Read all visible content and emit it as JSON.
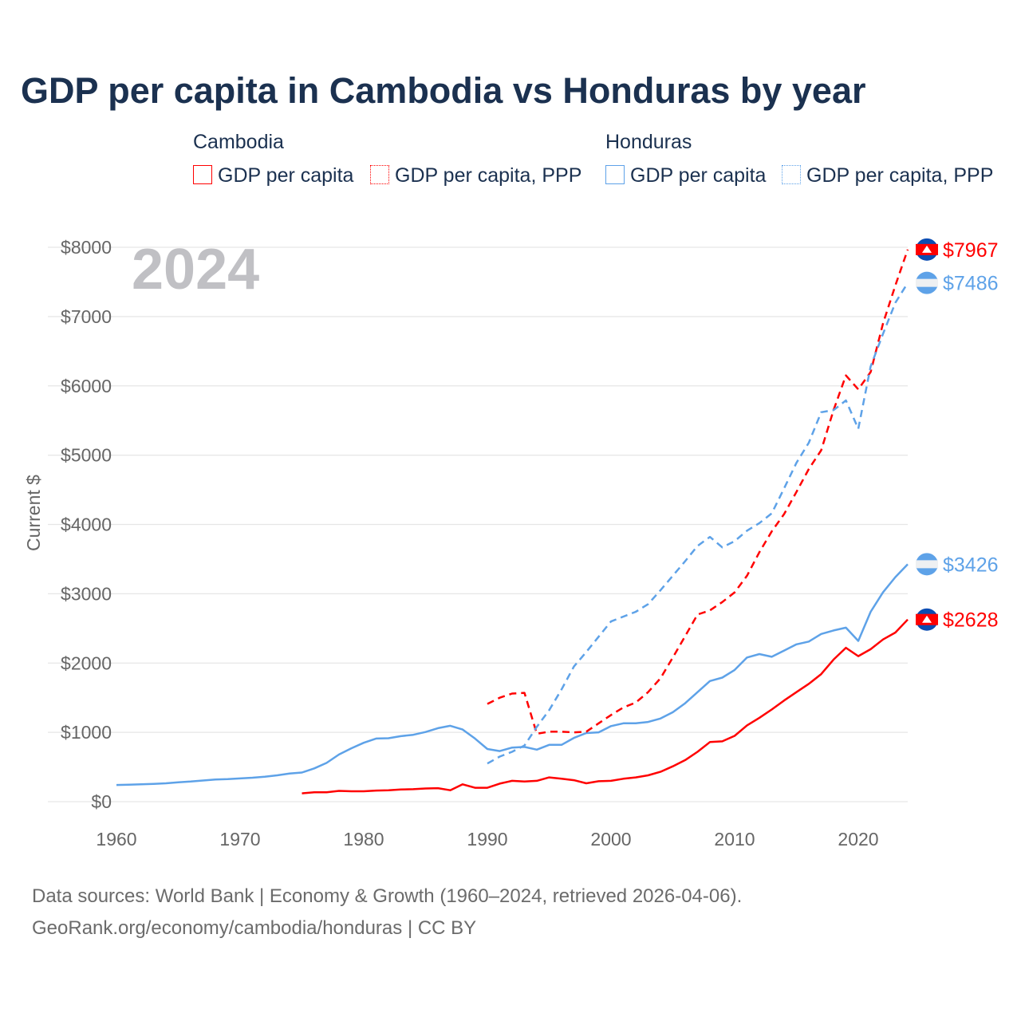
{
  "title": "GDP per capita in Cambodia vs Honduras by year",
  "legend": {
    "groups": [
      {
        "country": "Cambodia",
        "items": [
          "GDP per capita",
          "GDP per capita, PPP"
        ]
      },
      {
        "country": "Honduras",
        "items": [
          "GDP per capita",
          "GDP per capita, PPP"
        ]
      }
    ]
  },
  "footer": {
    "line1": "Data sources: World Bank | Economy & Growth (1960–2024, retrieved 2026-04-06).",
    "line2": "GeoRank.org/economy/cambodia/honduras | CC BY"
  },
  "colors": {
    "cambodia": "#ff0000",
    "honduras": "#5ea2e8"
  },
  "chart_data": {
    "type": "line",
    "title": "GDP per capita in Cambodia vs Honduras by year",
    "ylabel": "Current $",
    "xlabel": "",
    "year_label": "2024",
    "xlim": [
      1960,
      2024
    ],
    "ylim": [
      0,
      8000
    ],
    "xticks": [
      1960,
      1970,
      1980,
      1990,
      2000,
      2010,
      2020
    ],
    "xtick_labels": [
      "1960",
      "1970",
      "1980",
      "1990",
      "2000",
      "2010",
      "2020"
    ],
    "yticks": [
      0,
      1000,
      2000,
      3000,
      4000,
      5000,
      6000,
      7000,
      8000
    ],
    "ytick_labels": [
      "$0",
      "$1000",
      "$2000",
      "$3000",
      "$4000",
      "$5000",
      "$6000",
      "$7000",
      "$8000"
    ],
    "series": [
      {
        "name": "Honduras GDP per capita",
        "country": "honduras",
        "dashed": false,
        "start": 1960,
        "end_label": "$3426",
        "values": [
          240,
          245,
          250,
          255,
          265,
          280,
          290,
          305,
          320,
          325,
          335,
          345,
          360,
          380,
          405,
          420,
          480,
          560,
          680,
          770,
          850,
          910,
          915,
          945,
          965,
          1005,
          1060,
          1095,
          1040,
          910,
          760,
          730,
          780,
          790,
          750,
          820,
          820,
          920,
          990,
          1000,
          1090,
          1130,
          1130,
          1150,
          1200,
          1290,
          1420,
          1580,
          1740,
          1790,
          1900,
          2080,
          2130,
          2090,
          2180,
          2270,
          2310,
          2420,
          2470,
          2510,
          2320,
          2740,
          3020,
          3240,
          3426
        ]
      },
      {
        "name": "Cambodia GDP per capita",
        "country": "cambodia",
        "dashed": false,
        "start": 1975,
        "end_label": "$2628",
        "values": [
          120,
          135,
          135,
          155,
          150,
          150,
          160,
          165,
          175,
          180,
          190,
          195,
          165,
          250,
          200,
          200,
          260,
          300,
          290,
          300,
          350,
          330,
          310,
          265,
          295,
          300,
          330,
          350,
          380,
          430,
          510,
          600,
          720,
          860,
          870,
          950,
          1100,
          1210,
          1330,
          1460,
          1580,
          1700,
          1840,
          2050,
          2220,
          2100,
          2200,
          2340,
          2440,
          2628
        ]
      },
      {
        "name": "Cambodia GDP per capita, PPP",
        "country": "cambodia",
        "dashed": true,
        "start": 1990,
        "end_label": "$7967",
        "values": [
          1410,
          1500,
          1560,
          1570,
          980,
          1010,
          1010,
          1000,
          1010,
          1130,
          1250,
          1360,
          1430,
          1580,
          1780,
          2080,
          2390,
          2700,
          2760,
          2880,
          3020,
          3260,
          3600,
          3900,
          4150,
          4470,
          4800,
          5070,
          5650,
          6150,
          5950,
          6200,
          6900,
          7450,
          7967
        ]
      },
      {
        "name": "Honduras GDP per capita, PPP",
        "country": "honduras",
        "dashed": true,
        "start": 1990,
        "end_label": "$7486",
        "values": [
          550,
          650,
          720,
          810,
          1080,
          1320,
          1620,
          1950,
          2160,
          2380,
          2600,
          2670,
          2740,
          2850,
          3050,
          3260,
          3470,
          3690,
          3820,
          3670,
          3760,
          3910,
          4020,
          4160,
          4520,
          4890,
          5180,
          5620,
          5650,
          5790,
          5380,
          6280,
          6750,
          7200,
          7486
        ]
      }
    ]
  }
}
